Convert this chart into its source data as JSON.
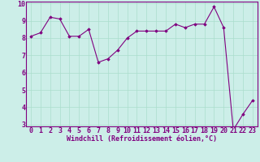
{
  "x": [
    0,
    1,
    2,
    3,
    4,
    5,
    6,
    7,
    8,
    9,
    10,
    11,
    12,
    13,
    14,
    15,
    16,
    17,
    18,
    19,
    20,
    21,
    22,
    23
  ],
  "y": [
    8.1,
    8.3,
    9.2,
    9.1,
    8.1,
    8.1,
    8.5,
    6.6,
    6.8,
    7.3,
    8.0,
    8.4,
    8.4,
    8.4,
    8.4,
    8.8,
    8.6,
    8.8,
    8.8,
    9.8,
    8.6,
    2.7,
    3.6,
    4.4
  ],
  "line_color": "#800080",
  "marker": "D",
  "marker_size": 1.8,
  "line_width": 0.8,
  "bg_color": "#cceee8",
  "grid_color": "#aaddcc",
  "xlabel": "Windchill (Refroidissement éolien,°C)",
  "xlabel_color": "#800080",
  "xlabel_fontsize": 6.0,
  "tick_fontsize": 6.0,
  "tick_color": "#800080",
  "ylim": [
    3,
    10
  ],
  "xlim": [
    -0.5,
    23.5
  ],
  "yticks": [
    3,
    4,
    5,
    6,
    7,
    8,
    9,
    10
  ],
  "xticks": [
    0,
    1,
    2,
    3,
    4,
    5,
    6,
    7,
    8,
    9,
    10,
    11,
    12,
    13,
    14,
    15,
    16,
    17,
    18,
    19,
    20,
    21,
    22,
    23
  ]
}
